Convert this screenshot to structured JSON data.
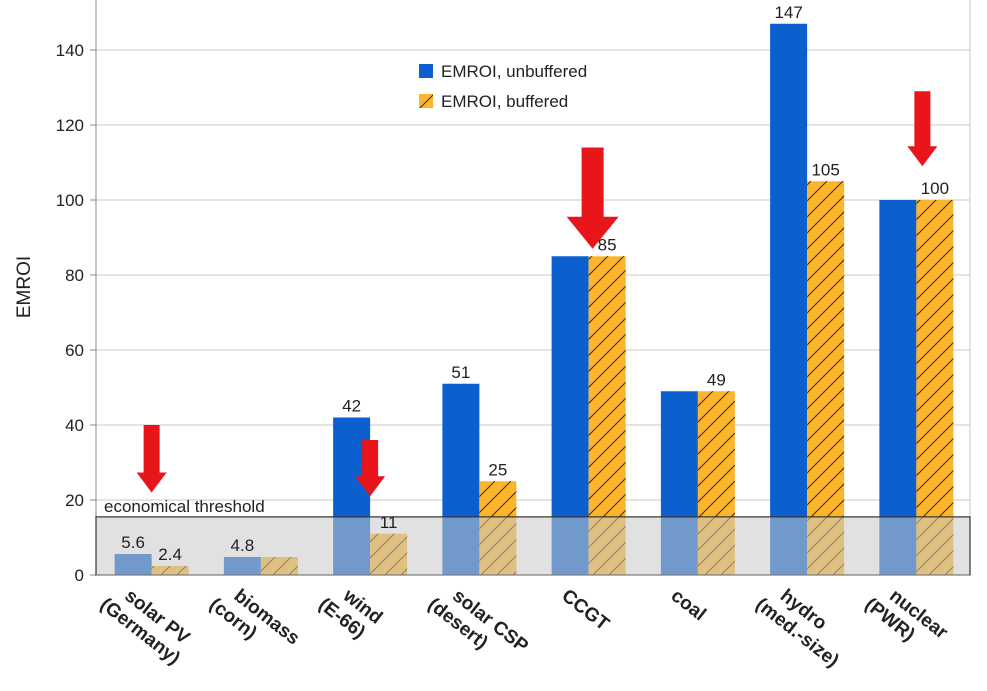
{
  "chart_data": {
    "type": "bar",
    "ylabel": "EMROI",
    "ylim": [
      0,
      150
    ],
    "yticks": [
      0,
      20,
      40,
      60,
      80,
      100,
      120,
      140
    ],
    "grid": "horizontal",
    "legend_position": "top-center",
    "categories": [
      [
        "solar PV",
        "(Germany)"
      ],
      [
        "biomass",
        "(corn)"
      ],
      [
        "wind",
        "(E-66)"
      ],
      [
        "solar CSP",
        "(desert)"
      ],
      [
        "CCGT",
        ""
      ],
      [
        "coal",
        ""
      ],
      [
        "hydro",
        "(med.-size)"
      ],
      [
        "nuclear",
        "(PWR)"
      ]
    ],
    "series": [
      {
        "name": "EMROI, unbuffered",
        "color": "#0b5fce",
        "values": [
          5.6,
          4.8,
          42,
          51,
          85,
          49,
          147,
          100
        ],
        "labels": [
          "5.6",
          "4.8",
          "42",
          "51",
          "",
          "",
          "147",
          ""
        ]
      },
      {
        "name": "EMROI, buffered",
        "color": "#fbb52a",
        "hatched": true,
        "values": [
          2.4,
          4.8,
          11,
          25,
          85,
          49,
          105,
          100
        ],
        "labels": [
          "2.4",
          "",
          "11",
          "25",
          "85",
          "49",
          "105",
          "100"
        ]
      }
    ],
    "threshold": {
      "label": "economical threshold",
      "value": 15.5
    },
    "arrows": [
      {
        "category_index": 0,
        "top": 40,
        "bottom": 22,
        "color": "#e8151b"
      },
      {
        "category_index": 2,
        "top": 36,
        "bottom": 21,
        "color": "#e8151b"
      },
      {
        "category_index": 4,
        "top": 114,
        "bottom": 87,
        "color": "#e8151b"
      },
      {
        "category_index": 7,
        "top": 129,
        "bottom": 109,
        "color": "#e8151b"
      }
    ]
  }
}
